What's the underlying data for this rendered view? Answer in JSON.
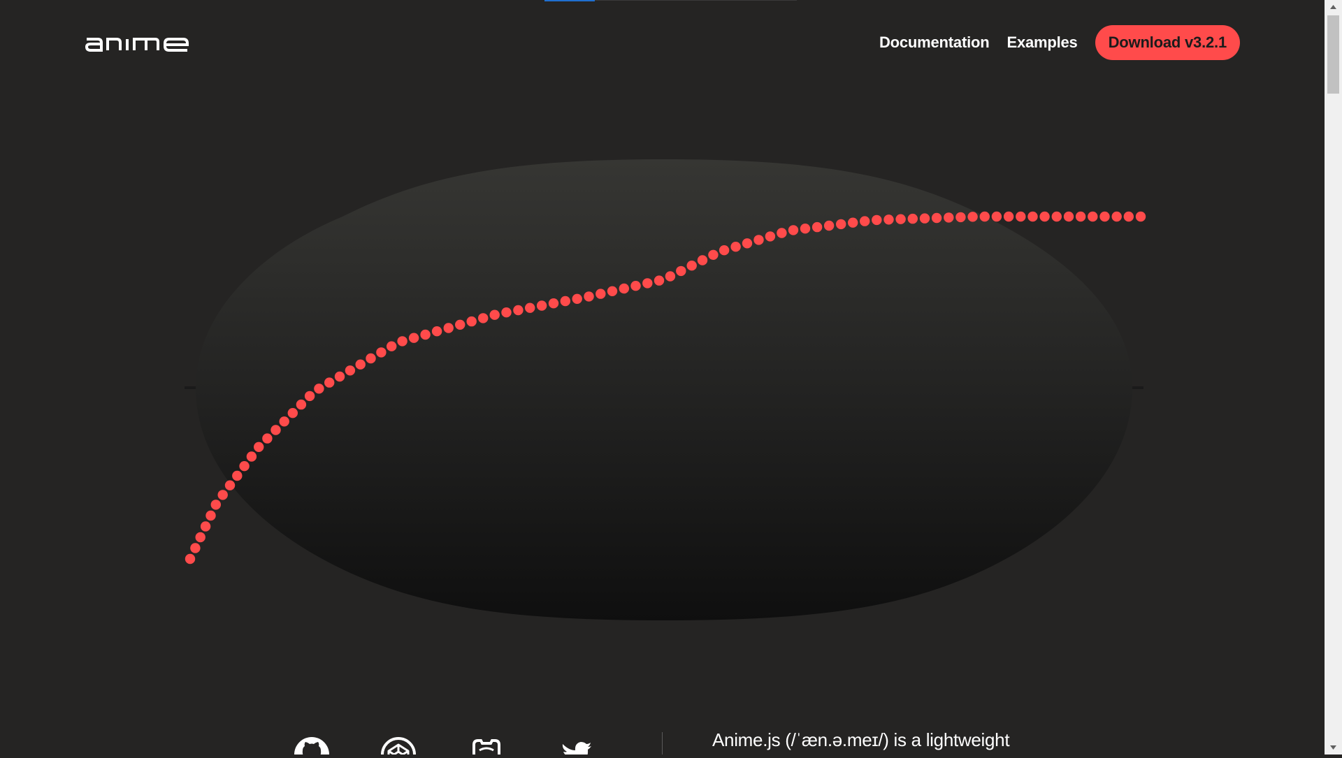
{
  "header": {
    "logo_text": "anime",
    "nav": {
      "documentation": "Documentation",
      "examples": "Examples",
      "download": "Download v3.2.1"
    }
  },
  "hero": {
    "accent_color": "#ff4b4b",
    "dot_count": 90
  },
  "footer": {
    "social_icons": [
      "github-icon",
      "codepen-icon",
      "discord-icon",
      "twitter-icon"
    ],
    "tagline": "Anime.js (/ˈæn.ə.meɪ/) is a lightweight"
  },
  "colors": {
    "background": "#252423",
    "accent": "#ff4b4b",
    "progress": "#1f6fd0"
  }
}
